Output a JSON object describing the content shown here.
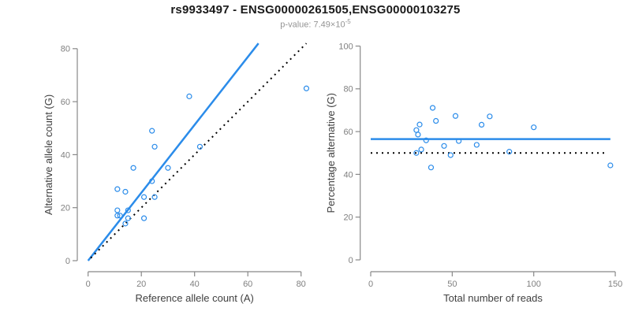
{
  "header": {
    "title": "rs9933497 - ENSG00000261505,ENSG00000103275",
    "pvalue_prefix": "p-value: 7.49×10",
    "pvalue_exponent": "-5"
  },
  "colors": {
    "accent_blue": "#2b8cea",
    "identity_black": "#000000",
    "axis_line": "#888888",
    "tick_text": "#808080",
    "axis_label_text": "#404040"
  },
  "chart_data": [
    {
      "type": "scatter",
      "name": "allele-counts-panel",
      "xlabel": "Reference allele count (A)",
      "ylabel": "Alternative allele count (G)",
      "xlim": [
        0,
        80
      ],
      "ylim": [
        0,
        80
      ],
      "xticks": [
        0,
        20,
        40,
        60,
        80
      ],
      "yticks": [
        0,
        20,
        40,
        60,
        80
      ],
      "grid": false,
      "points": [
        [
          38,
          62
        ],
        [
          82,
          65
        ],
        [
          24,
          49
        ],
        [
          25,
          43
        ],
        [
          17,
          35
        ],
        [
          30,
          35
        ],
        [
          42,
          43
        ],
        [
          24,
          30
        ],
        [
          11,
          27
        ],
        [
          14,
          26
        ],
        [
          21,
          24
        ],
        [
          25,
          24
        ],
        [
          11,
          19
        ],
        [
          11,
          17
        ],
        [
          12,
          17
        ],
        [
          15,
          19
        ],
        [
          15,
          16
        ],
        [
          14,
          14
        ],
        [
          21,
          16
        ]
      ],
      "lines": [
        {
          "name": "regression-line",
          "style": "solid",
          "color": "#2b8cea",
          "x1": 0,
          "y1": 0,
          "x2": 64,
          "y2": 82,
          "width": 2.5
        },
        {
          "name": "identity-line",
          "style": "dotted",
          "color": "#000000",
          "x1": 1,
          "y1": 1,
          "x2": 82,
          "y2": 82,
          "width": 2
        }
      ]
    },
    {
      "type": "scatter",
      "name": "percentage-reads-panel",
      "xlabel": "Total number of reads",
      "ylabel": "Percentage alternative (G)",
      "xlim": [
        0,
        150
      ],
      "ylim": [
        0,
        100
      ],
      "xticks": [
        0,
        50,
        100,
        150
      ],
      "yticks": [
        0,
        20,
        40,
        60,
        80,
        100
      ],
      "grid": false,
      "points": [
        [
          100,
          62
        ],
        [
          147,
          44.2
        ],
        [
          73,
          67.1
        ],
        [
          68,
          63.2
        ],
        [
          52,
          67.3
        ],
        [
          65,
          53.8
        ],
        [
          85,
          50.6
        ],
        [
          54,
          55.6
        ],
        [
          38,
          71.1
        ],
        [
          40,
          65
        ],
        [
          45,
          53.3
        ],
        [
          49,
          49
        ],
        [
          30,
          63.3
        ],
        [
          28,
          60.7
        ],
        [
          29,
          58.6
        ],
        [
          34,
          55.9
        ],
        [
          31,
          51.6
        ],
        [
          28,
          50
        ],
        [
          37,
          43.2
        ]
      ],
      "lines": [
        {
          "name": "mean-percentage-line",
          "style": "solid",
          "color": "#2b8cea",
          "x1": 0,
          "y1": 56.5,
          "x2": 147,
          "y2": 56.5,
          "width": 2.5
        },
        {
          "name": "null-50pct-line",
          "style": "dotted",
          "color": "#000000",
          "x1": 0,
          "y1": 50,
          "x2": 144,
          "y2": 50,
          "width": 2
        }
      ]
    }
  ]
}
